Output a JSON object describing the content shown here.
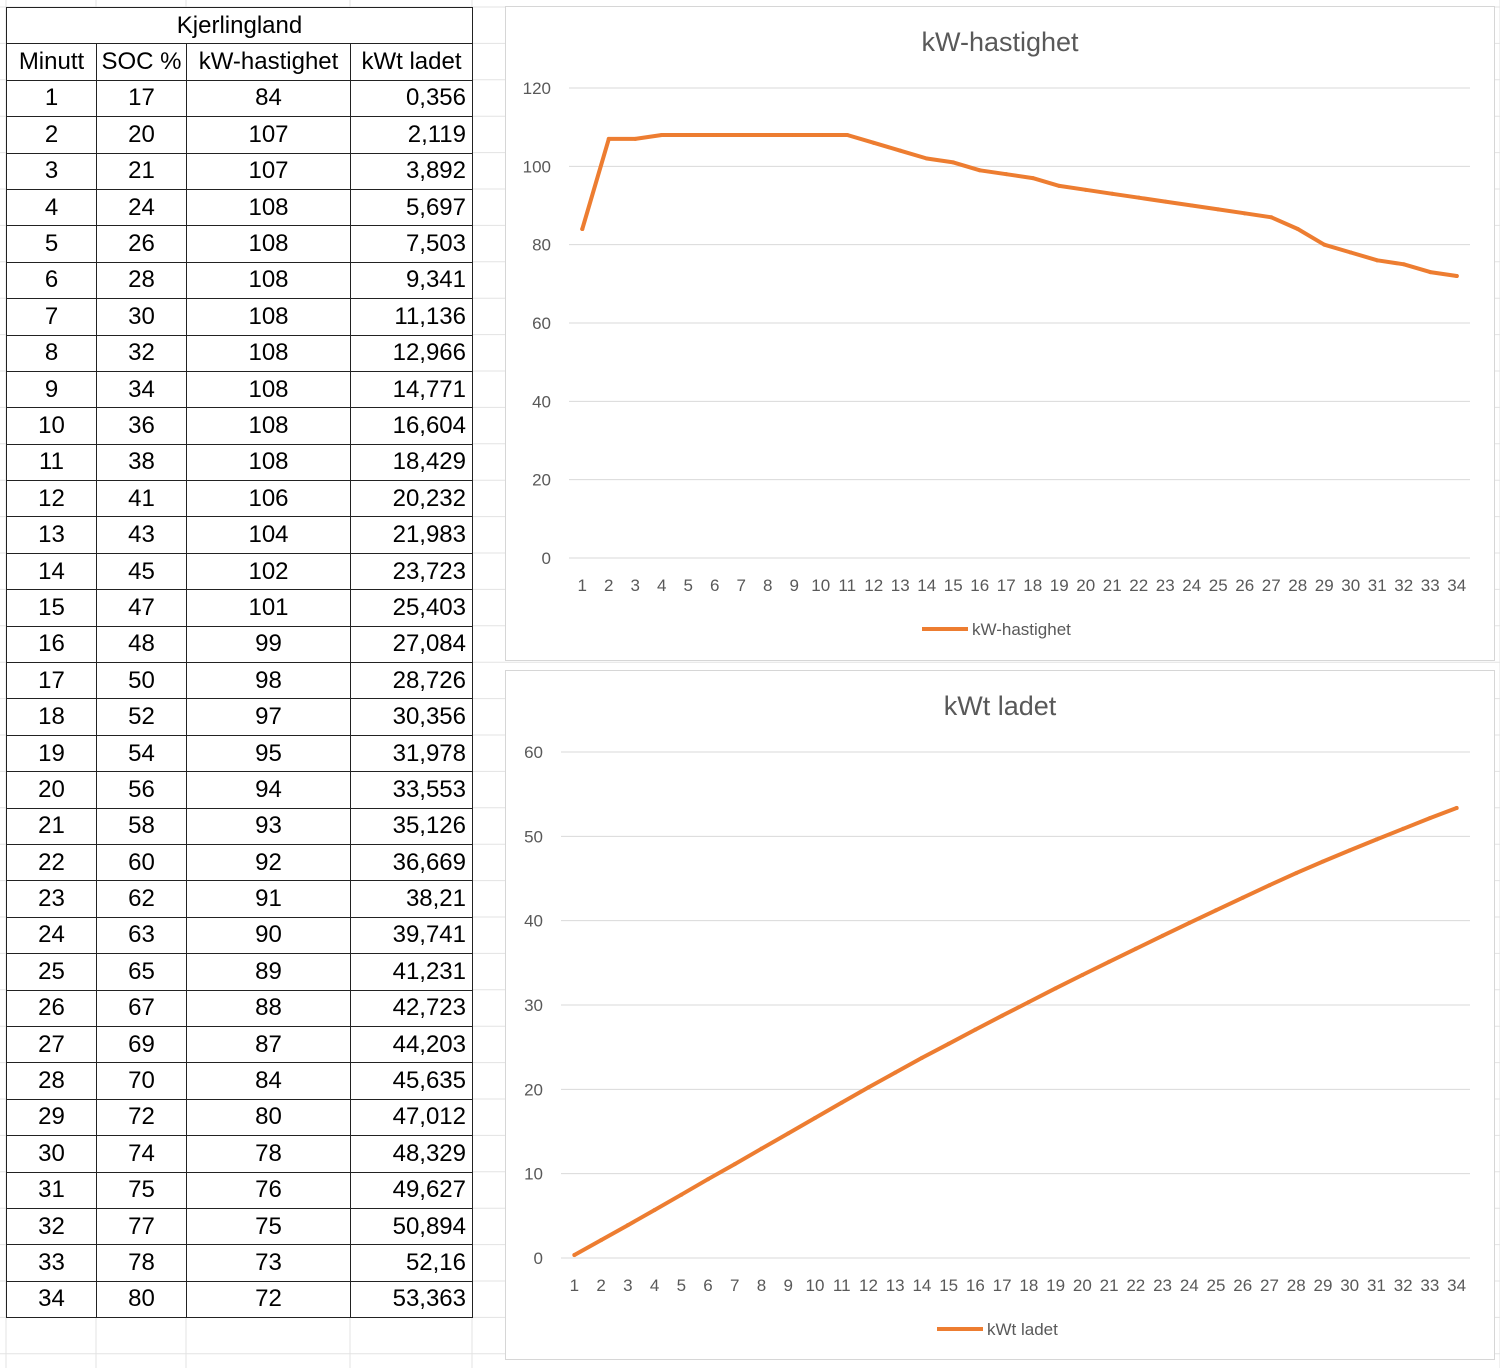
{
  "table": {
    "title": "Kjerlingland",
    "headers": [
      "Minutt",
      "SOC %",
      "kW-hastighet",
      "kWt ladet"
    ],
    "rows": [
      [
        "1",
        "17",
        "84",
        "0,356"
      ],
      [
        "2",
        "20",
        "107",
        "2,119"
      ],
      [
        "3",
        "21",
        "107",
        "3,892"
      ],
      [
        "4",
        "24",
        "108",
        "5,697"
      ],
      [
        "5",
        "26",
        "108",
        "7,503"
      ],
      [
        "6",
        "28",
        "108",
        "9,341"
      ],
      [
        "7",
        "30",
        "108",
        "11,136"
      ],
      [
        "8",
        "32",
        "108",
        "12,966"
      ],
      [
        "9",
        "34",
        "108",
        "14,771"
      ],
      [
        "10",
        "36",
        "108",
        "16,604"
      ],
      [
        "11",
        "38",
        "108",
        "18,429"
      ],
      [
        "12",
        "41",
        "106",
        "20,232"
      ],
      [
        "13",
        "43",
        "104",
        "21,983"
      ],
      [
        "14",
        "45",
        "102",
        "23,723"
      ],
      [
        "15",
        "47",
        "101",
        "25,403"
      ],
      [
        "16",
        "48",
        "99",
        "27,084"
      ],
      [
        "17",
        "50",
        "98",
        "28,726"
      ],
      [
        "18",
        "52",
        "97",
        "30,356"
      ],
      [
        "19",
        "54",
        "95",
        "31,978"
      ],
      [
        "20",
        "56",
        "94",
        "33,553"
      ],
      [
        "21",
        "58",
        "93",
        "35,126"
      ],
      [
        "22",
        "60",
        "92",
        "36,669"
      ],
      [
        "23",
        "62",
        "91",
        "38,21"
      ],
      [
        "24",
        "63",
        "90",
        "39,741"
      ],
      [
        "25",
        "65",
        "89",
        "41,231"
      ],
      [
        "26",
        "67",
        "88",
        "42,723"
      ],
      [
        "27",
        "69",
        "87",
        "44,203"
      ],
      [
        "28",
        "70",
        "84",
        "45,635"
      ],
      [
        "29",
        "72",
        "80",
        "47,012"
      ],
      [
        "30",
        "74",
        "78",
        "48,329"
      ],
      [
        "31",
        "75",
        "76",
        "49,627"
      ],
      [
        "32",
        "77",
        "75",
        "50,894"
      ],
      [
        "33",
        "78",
        "73",
        "52,16"
      ],
      [
        "34",
        "80",
        "72",
        "53,363"
      ]
    ]
  },
  "chart_data": [
    {
      "type": "line",
      "title": "kW-hastighet",
      "categories": [
        "1",
        "2",
        "3",
        "4",
        "5",
        "6",
        "7",
        "8",
        "9",
        "10",
        "11",
        "12",
        "13",
        "14",
        "15",
        "16",
        "17",
        "18",
        "19",
        "20",
        "21",
        "22",
        "23",
        "24",
        "25",
        "26",
        "27",
        "28",
        "29",
        "30",
        "31",
        "32",
        "33",
        "34"
      ],
      "series": [
        {
          "name": "kW-hastighet",
          "color": "#ED7D31",
          "values": [
            84,
            107,
            107,
            108,
            108,
            108,
            108,
            108,
            108,
            108,
            108,
            106,
            104,
            102,
            101,
            99,
            98,
            97,
            95,
            94,
            93,
            92,
            91,
            90,
            89,
            88,
            87,
            84,
            80,
            78,
            76,
            75,
            73,
            72
          ]
        }
      ],
      "ylim": [
        0,
        120
      ],
      "yticks": [
        0,
        20,
        40,
        60,
        80,
        100,
        120
      ],
      "grid": true,
      "legend": "bottom"
    },
    {
      "type": "line",
      "title": "kWt ladet",
      "categories": [
        "1",
        "2",
        "3",
        "4",
        "5",
        "6",
        "7",
        "8",
        "9",
        "10",
        "11",
        "12",
        "13",
        "14",
        "15",
        "16",
        "17",
        "18",
        "19",
        "20",
        "21",
        "22",
        "23",
        "24",
        "25",
        "26",
        "27",
        "28",
        "29",
        "30",
        "31",
        "32",
        "33",
        "34"
      ],
      "series": [
        {
          "name": "kWt ladet",
          "color": "#ED7D31",
          "values": [
            0.356,
            2.119,
            3.892,
            5.697,
            7.503,
            9.341,
            11.136,
            12.966,
            14.771,
            16.604,
            18.429,
            20.232,
            21.983,
            23.723,
            25.403,
            27.084,
            28.726,
            30.356,
            31.978,
            33.553,
            35.126,
            36.669,
            38.21,
            39.741,
            41.231,
            42.723,
            44.203,
            45.635,
            47.012,
            48.329,
            49.627,
            50.894,
            52.16,
            53.363
          ]
        }
      ],
      "ylim": [
        0,
        60
      ],
      "yticks": [
        0,
        10,
        20,
        30,
        40,
        50,
        60
      ],
      "grid": true,
      "legend": "bottom"
    }
  ]
}
